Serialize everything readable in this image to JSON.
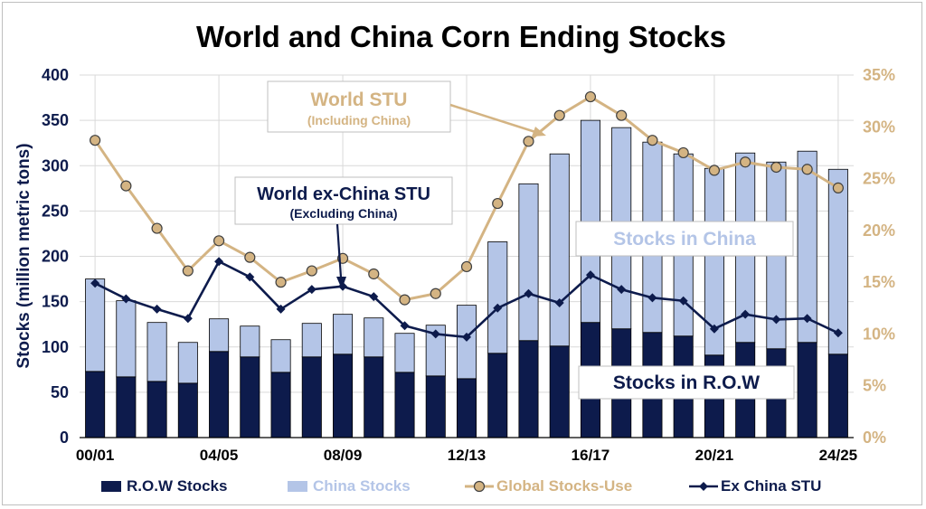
{
  "chart_data": {
    "type": "bar",
    "title": "World and China Corn Ending Stocks",
    "ylabel": "Stocks (million metric tons)",
    "ylim": [
      0,
      400
    ],
    "y2lim": [
      0,
      35
    ],
    "yticks": [
      "0",
      "50",
      "100",
      "150",
      "200",
      "250",
      "300",
      "350",
      "400"
    ],
    "y2ticks": [
      "0%",
      "5%",
      "10%",
      "15%",
      "20%",
      "25%",
      "30%",
      "35%"
    ],
    "x_tick_labels": [
      "00/01",
      "04/05",
      "08/09",
      "12/13",
      "16/17",
      "20/21",
      "24/25"
    ],
    "x_tick_every": 4,
    "stacked": true,
    "grid": true,
    "legend": "bottom",
    "series": [
      {
        "name": "R.O.W Stocks",
        "type": "bar",
        "color": "#0d1b4c",
        "values": [
          73,
          67,
          62,
          60,
          95,
          89,
          72,
          89,
          92,
          89,
          72,
          68,
          65,
          93,
          107,
          101,
          127,
          120,
          116,
          112,
          91,
          105,
          98,
          105,
          92
        ]
      },
      {
        "name": "China Stocks",
        "type": "bar",
        "color": "#b4c5e7",
        "values": [
          102,
          84,
          65,
          45,
          36,
          34,
          36,
          37,
          44,
          43,
          43,
          56,
          81,
          123,
          173,
          212,
          223,
          222,
          210,
          201,
          206,
          209,
          206,
          211,
          204
        ]
      },
      {
        "name": "Global Stocks-Use",
        "type": "line",
        "axis": "right",
        "color": "#d4b483",
        "values": [
          28.7,
          24.3,
          20.2,
          16.1,
          19.0,
          17.4,
          15.0,
          16.1,
          17.3,
          15.8,
          13.3,
          13.9,
          16.5,
          22.6,
          28.6,
          31.1,
          32.9,
          31.1,
          28.7,
          27.5,
          25.8,
          26.6,
          26.1,
          25.9,
          24.1
        ]
      },
      {
        "name": "Ex China STU",
        "type": "line",
        "axis": "right",
        "color": "#0d1b4c",
        "values": [
          14.9,
          13.4,
          12.4,
          11.5,
          17.0,
          15.5,
          12.4,
          14.3,
          14.6,
          13.6,
          10.8,
          10.0,
          9.7,
          12.5,
          13.9,
          13.0,
          15.7,
          14.3,
          13.5,
          13.2,
          10.5,
          11.9,
          11.4,
          11.5,
          10.1
        ]
      }
    ],
    "annotations": [
      {
        "id": "world-stu",
        "title": "World STU",
        "subtitle": "(Including China)"
      },
      {
        "id": "exchina-stu",
        "title": "World ex-China STU",
        "subtitle": "(Excluding China)"
      },
      {
        "id": "china-stocks",
        "title": "Stocks in China"
      },
      {
        "id": "row-stocks",
        "title": "Stocks in R.O.W"
      }
    ]
  },
  "colors": {
    "row": "#0d1b4c",
    "china": "#b4c5e7",
    "global_stu": "#d4b483",
    "ex_china_stu": "#0d1b4c"
  }
}
